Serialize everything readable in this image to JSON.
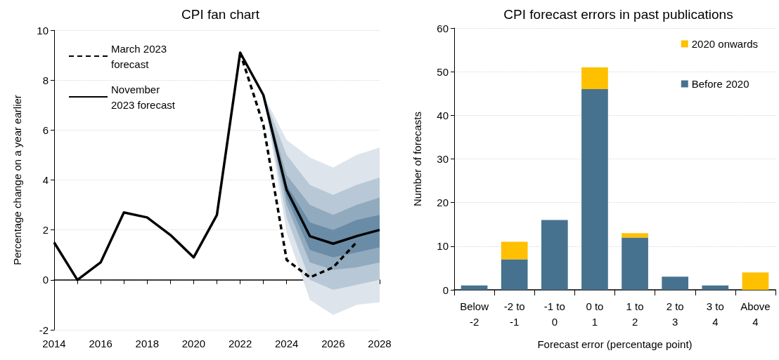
{
  "chart_data": [
    {
      "type": "line",
      "title": "CPI fan chart",
      "ylabel": "Percentage change on a year earlier",
      "xlim": [
        2014,
        2028
      ],
      "xticks": [
        2014,
        {
          "value": 2015,
          "label": null
        },
        2016,
        {
          "value": 2017,
          "label": null
        },
        2018,
        {
          "value": 2019,
          "label": null
        },
        2020,
        {
          "value": 2021,
          "label": null
        },
        2022,
        {
          "value": 2023,
          "label": null
        },
        2024,
        {
          "value": 2025,
          "label": null
        },
        2026,
        {
          "value": 2027,
          "label": null
        },
        2028
      ],
      "ylim": [
        -2,
        10
      ],
      "yticks": [
        -2,
        0,
        2,
        4,
        6,
        8,
        10
      ],
      "grid": "y",
      "legend": "top left",
      "marker": "none",
      "series": [
        {
          "type": "area",
          "color": "#dde4eb",
          "x": [
            2023,
            2024,
            2025,
            2026,
            2027,
            2028
          ],
          "values": [
            null,
            null,
            null,
            null,
            null,
            null
          ],
          "lower": [
            7.4,
            1.9,
            -0.8,
            -1.4,
            -1.0,
            -0.9
          ],
          "upper": [
            7.4,
            5.6,
            4.9,
            4.5,
            5.0,
            5.3
          ]
        },
        {
          "type": "area",
          "color": "#b8c8d6",
          "x": [
            2023,
            2024,
            2025,
            2026,
            2027,
            2028
          ],
          "values": [
            null,
            null,
            null,
            null,
            null,
            null
          ],
          "lower": [
            7.4,
            2.5,
            0.0,
            -0.4,
            -0.2,
            0.0
          ],
          "upper": [
            7.4,
            5.0,
            3.8,
            3.4,
            3.8,
            4.1
          ]
        },
        {
          "type": "area",
          "color": "#92aabe",
          "x": [
            2023,
            2024,
            2025,
            2026,
            2027,
            2028
          ],
          "values": [
            null,
            null,
            null,
            null,
            null,
            null
          ],
          "lower": [
            7.4,
            3.0,
            0.7,
            0.4,
            0.5,
            0.7
          ],
          "upper": [
            7.4,
            4.2,
            3.0,
            2.6,
            3.0,
            3.3
          ]
        },
        {
          "type": "area",
          "color": "#6a8ca7",
          "x": [
            2023,
            2024,
            2025,
            2026,
            2027,
            2028
          ],
          "values": [
            null,
            null,
            null,
            null,
            null,
            null
          ],
          "lower": [
            7.4,
            3.3,
            1.2,
            0.9,
            1.1,
            1.3
          ],
          "upper": [
            7.4,
            3.8,
            2.3,
            2.0,
            2.4,
            2.6
          ]
        },
        {
          "name": "March 2023 forecast",
          "type": "line",
          "line_style": "dashed",
          "color": "#000000",
          "x": [
            2022,
            2023,
            2024,
            2025,
            2026,
            2027
          ],
          "values": [
            9.1,
            6.2,
            0.8,
            0.1,
            0.5,
            1.5
          ]
        },
        {
          "name": "November 2023 forecast",
          "type": "line",
          "line_style": "solid",
          "color": "#000000",
          "x": [
            2014,
            2015,
            2016,
            2017,
            2018,
            2019,
            2020,
            2021,
            2022,
            2023,
            2024,
            2025,
            2026,
            2027,
            2028
          ],
          "values": [
            1.5,
            0.0,
            0.7,
            2.7,
            2.5,
            1.8,
            0.9,
            2.6,
            9.1,
            7.4,
            3.6,
            1.75,
            1.45,
            1.75,
            2.0
          ]
        }
      ]
    },
    {
      "type": "bar",
      "title": "CPI forecast errors in past publications",
      "xlabel": "Forecast error (percentage point)",
      "ylabel": "Number of forecasts",
      "categories": [
        "Below -2",
        "-2 to -1",
        "-1 to 0",
        "0 to 1",
        "1 to 2",
        "2 to 3",
        "3 to 4",
        "Above 4"
      ],
      "stacked": true,
      "ylim": [
        0,
        60
      ],
      "yticks": [
        0,
        10,
        20,
        30,
        40,
        50,
        60
      ],
      "grid": "y",
      "legend": "top right",
      "series": [
        {
          "name": "Before 2020",
          "color": "#47728f",
          "values": [
            1,
            7,
            16,
            46,
            12,
            3,
            1,
            0
          ]
        },
        {
          "name": "2020 onwards",
          "color": "#ffc000",
          "values": [
            0,
            4,
            0,
            5,
            1,
            0,
            0,
            4
          ]
        }
      ]
    }
  ]
}
